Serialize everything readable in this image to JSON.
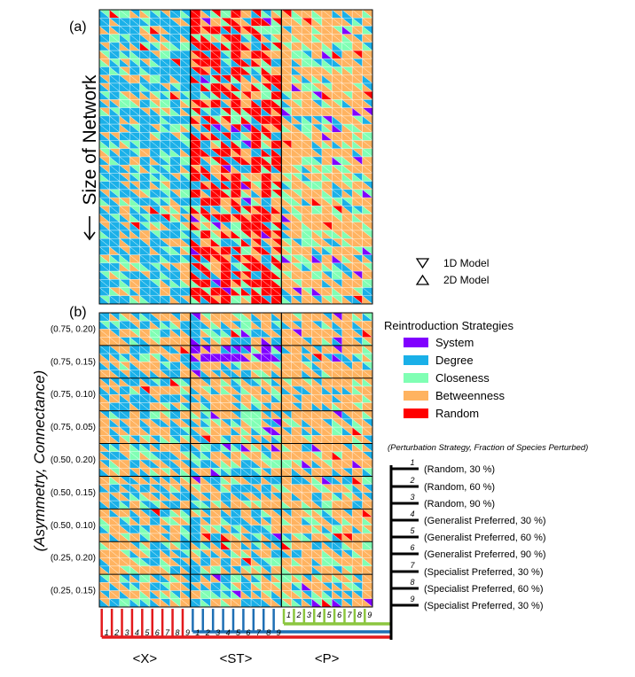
{
  "chart_data": {
    "type": "heatmap",
    "panel_labels": [
      "(a)",
      "(b)"
    ],
    "ylabel_a": "Size of Network",
    "ylabel_b": "(Asymmetry, Connectance)",
    "row_groups_b": [
      "(0.75, 0.20)",
      "(0.75, 0.15)",
      "(0.75, 0.10)",
      "(0.75, 0.05)",
      "(0.50, 0.20)",
      "(0.50, 0.15)",
      "(0.50, 0.10)",
      "(0.25, 0.20)",
      "(0.25, 0.15)"
    ],
    "column_groups": [
      "<X>",
      "<ST>",
      "<P>"
    ],
    "column_indices": [
      "1",
      "2",
      "3",
      "4",
      "5",
      "6",
      "7",
      "8",
      "9"
    ],
    "model_legend": [
      "1D Model",
      "2D Model"
    ],
    "legend_title": "Reintroduction Strategies",
    "strategies": [
      {
        "name": "System",
        "color": "#8000ff"
      },
      {
        "name": "Degree",
        "color": "#1ab0e8"
      },
      {
        "name": "Closeness",
        "color": "#80ffb4"
      },
      {
        "name": "Betweenness",
        "color": "#ffb360"
      },
      {
        "name": "Random",
        "color": "#ff0000"
      }
    ],
    "perturbation_title": "(Perturbation Strategy, Fraction of Species Perturbed)",
    "perturbations": [
      {
        "index": "1",
        "label": "(Random, 30 %)"
      },
      {
        "index": "2",
        "label": "(Random, 60 %)"
      },
      {
        "index": "3",
        "label": "(Random, 90 %)"
      },
      {
        "index": "4",
        "label": "(Generalist Preferred, 30 %)"
      },
      {
        "index": "5",
        "label": "(Generalist Preferred, 60 %)"
      },
      {
        "index": "6",
        "label": "(Generalist Preferred, 90 %)"
      },
      {
        "index": "7",
        "label": "(Specialist Preferred, 30 %)"
      },
      {
        "index": "8",
        "label": "(Specialist Preferred, 60 %)"
      },
      {
        "index": "9",
        "label": "(Specialist Preferred, 30 %)"
      }
    ],
    "grid_a": {
      "rows": 36,
      "cols": 27
    },
    "grid_b": {
      "rows": 36,
      "cols": 27,
      "rows_per_group": 4
    }
  }
}
